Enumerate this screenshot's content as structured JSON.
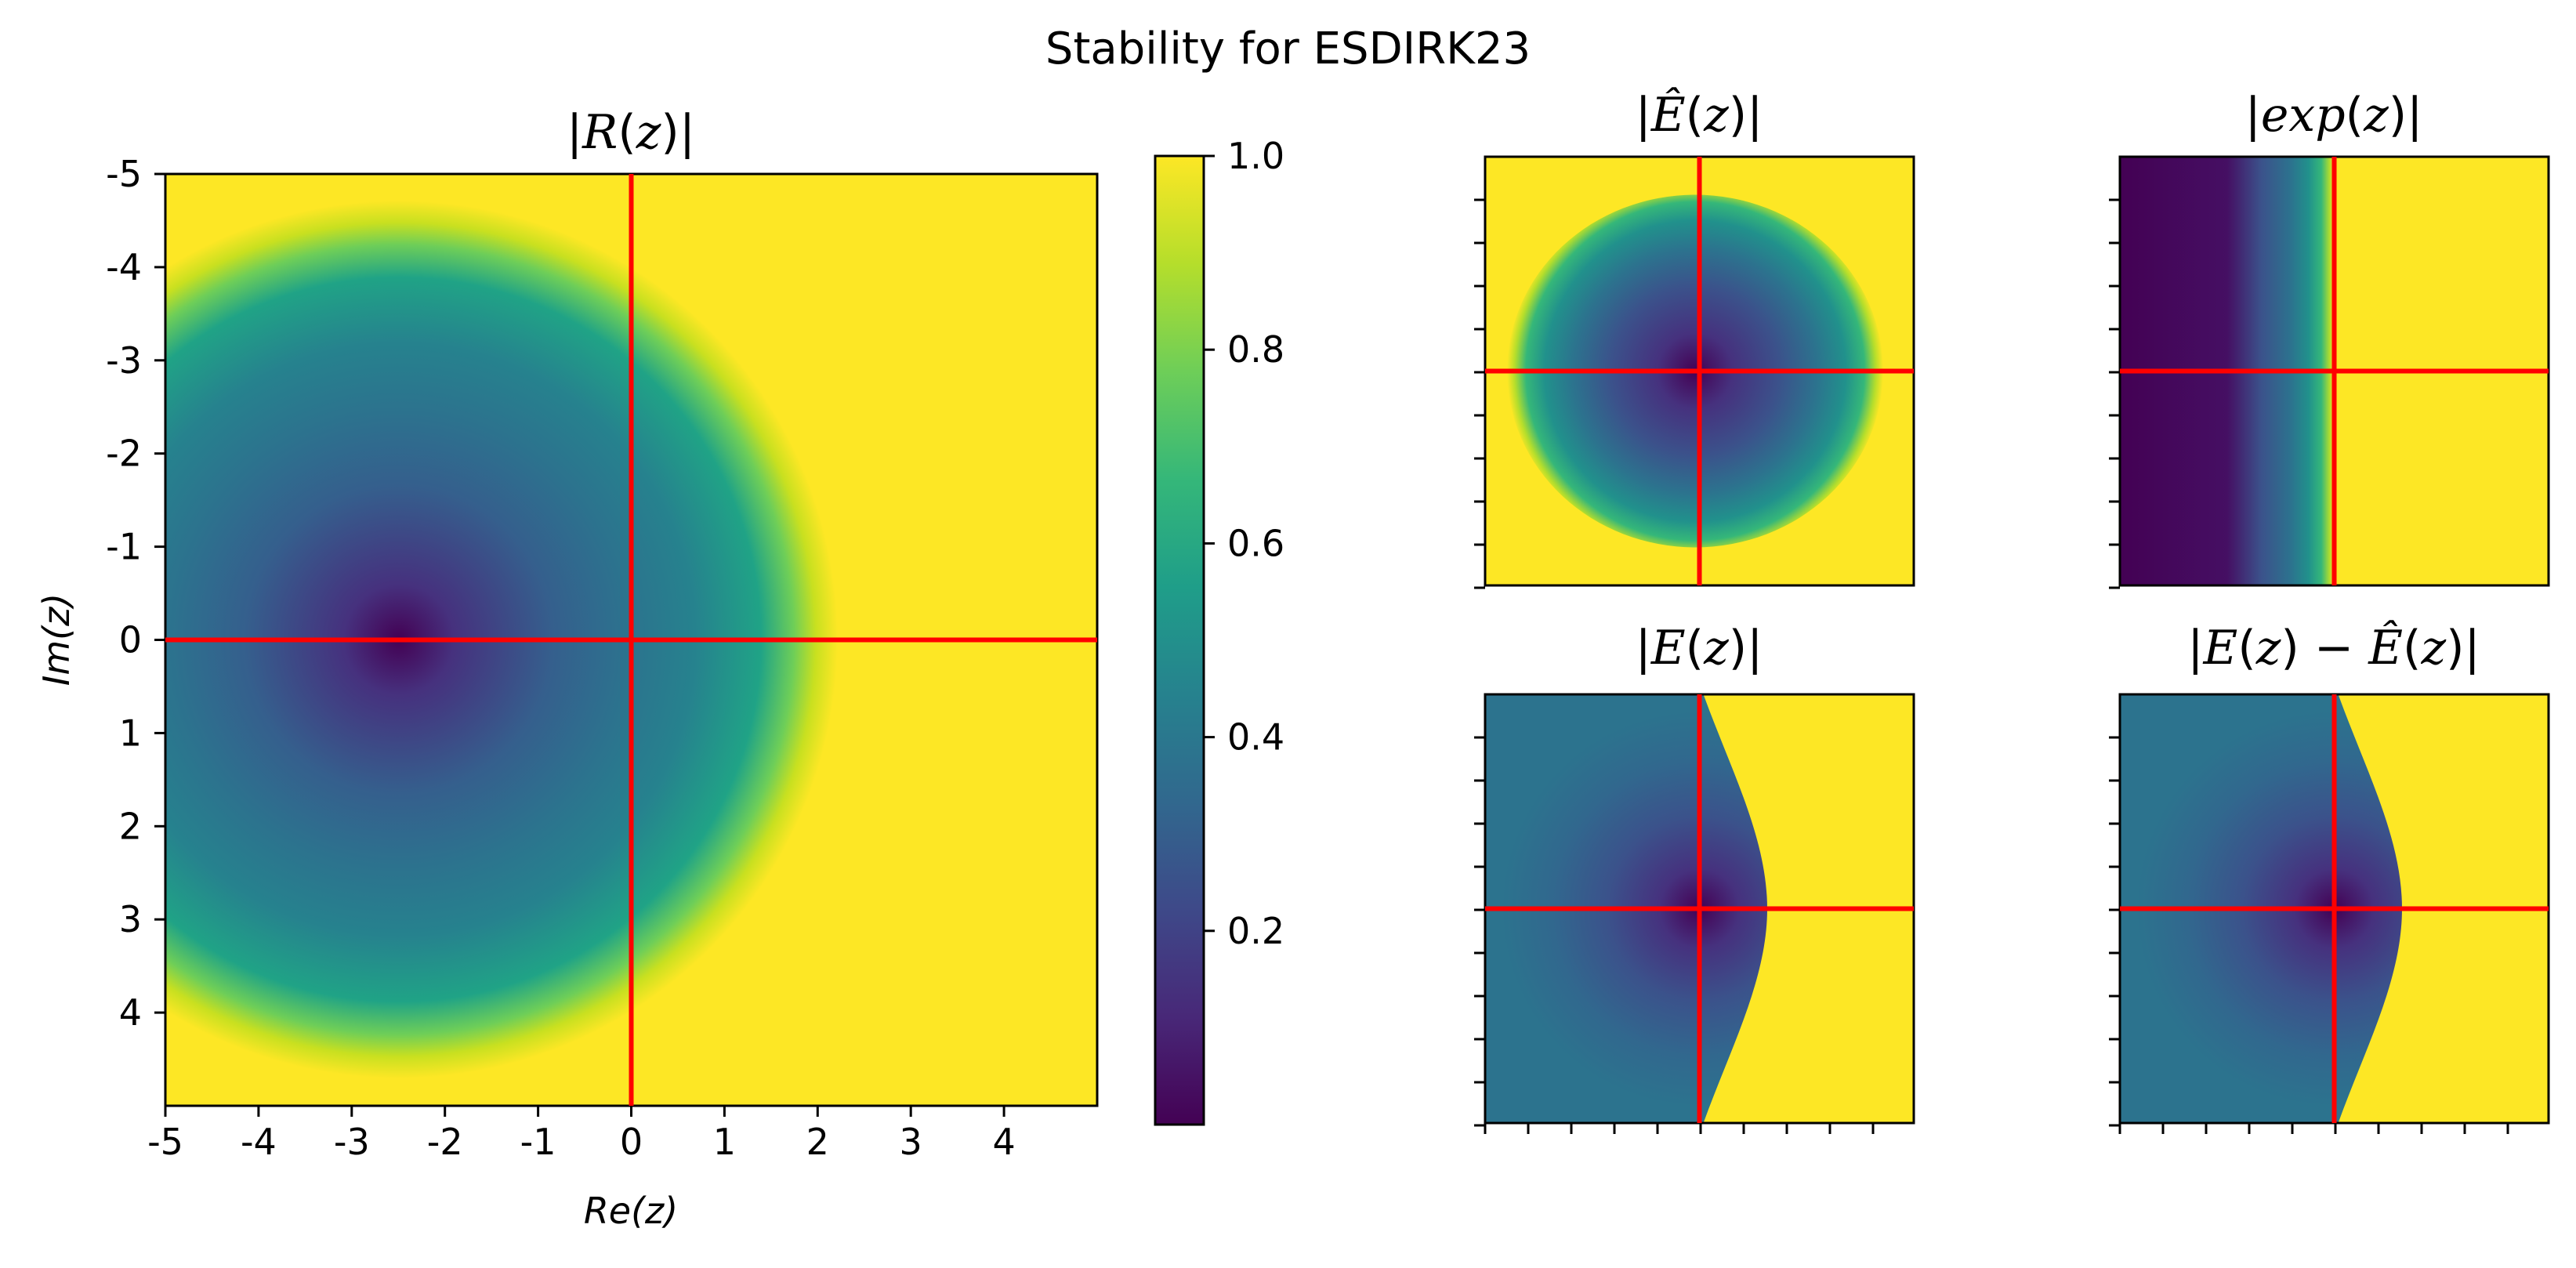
{
  "suptitle": "Stability for ESDIRK23",
  "colorbar": {
    "ticks": [
      "1.0",
      "0.8",
      "0.6",
      "0.4",
      "0.2"
    ],
    "tick_values": [
      1.0,
      0.8,
      0.6,
      0.4,
      0.2
    ],
    "range": [
      0.0,
      1.0
    ],
    "colormap": "viridis"
  },
  "colors": {
    "crosshair": "#ff0000",
    "axes": "#000000"
  },
  "chart_data": [
    {
      "type": "heatmap",
      "title": "|R(z)|",
      "xlabel": "Re(z)",
      "ylabel": "Im(z)",
      "xlim": [
        -5,
        5
      ],
      "ylim": [
        -5,
        5
      ],
      "xticks": [
        "-5",
        "-4",
        "-3",
        "-2",
        "-1",
        "0",
        "1",
        "2",
        "3",
        "4"
      ],
      "yticks": [
        "-5",
        "-4",
        "-3",
        "-2",
        "-1",
        "0",
        "1",
        "2",
        "3",
        "4"
      ],
      "crosshair": {
        "re": 0,
        "im": 0
      },
      "minimum_at": {
        "re": -2.4,
        "im": 0
      },
      "clip_max": 1.0
    },
    {
      "type": "heatmap",
      "title": "|Ê(z)|",
      "tick_labels_shown": false,
      "crosshair": {
        "re": 0,
        "im": 0
      },
      "note_shape": "bounded disc-like region of values below 1, surrounded by 1.0"
    },
    {
      "type": "heatmap",
      "title": "|exp(z)|",
      "tick_labels_shown": false,
      "crosshair": {
        "re": 0,
        "im": 0
      }
    },
    {
      "type": "heatmap",
      "title": "|E(z)|",
      "tick_labels_shown": false,
      "crosshair": {
        "re": 0,
        "im": 0
      }
    },
    {
      "type": "heatmap",
      "title": "|E(z) − Ê(z)|",
      "tick_labels_shown": false,
      "crosshair": {
        "re": 0,
        "im": 0
      }
    }
  ]
}
